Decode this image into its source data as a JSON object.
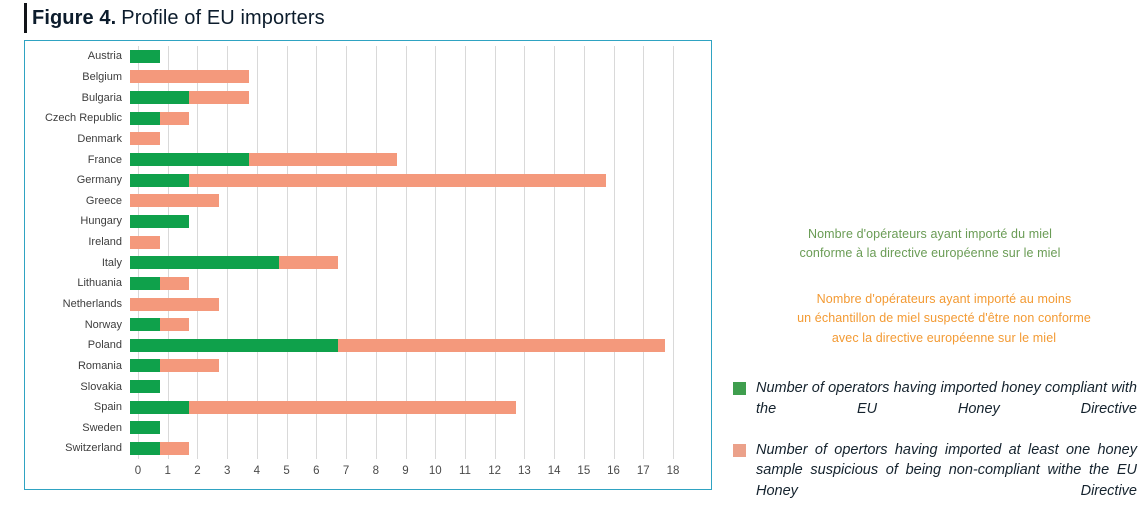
{
  "title": {
    "bold": "Figure 4.",
    "rest": "Profile of EU importers"
  },
  "colors": {
    "bar_green": "#0fa14b",
    "bar_salmon": "#f4997c",
    "frame_border": "#2fa3c2",
    "grid": "#d9d9d9",
    "fr_green_text": "#6a9c55",
    "fr_orange_text": "#f39a33",
    "legend_green": "#3f9e4e",
    "legend_salmon": "#eba18a"
  },
  "chart_data": {
    "type": "bar",
    "orientation": "horizontal",
    "stacked": true,
    "title": "Profile of EU importers",
    "categories": [
      "Austria",
      "Belgium",
      "Bulgaria",
      "Czech Republic",
      "Denmark",
      "France",
      "Germany",
      "Greece",
      "Hungary",
      "Ireland",
      "Italy",
      "Lithuania",
      "Netherlands",
      "Norway",
      "Poland",
      "Romania",
      "Slovakia",
      "Spain",
      "Sweden",
      "Switzerland"
    ],
    "series": [
      {
        "name": "Number of operators having imported honey compliant with the EU Honey Directive",
        "color_key": "bar_green",
        "values": [
          1,
          0,
          2,
          1,
          0,
          4,
          2,
          0,
          2,
          0,
          5,
          1,
          0,
          1,
          7,
          1,
          1,
          2,
          1,
          1
        ]
      },
      {
        "name": "Number of opertors having imported at least one honey sample suspicious of being non-compliant withe the EU Honey Directive",
        "color_key": "bar_salmon",
        "values": [
          0,
          4,
          2,
          1,
          1,
          5,
          14,
          3,
          0,
          1,
          2,
          1,
          3,
          1,
          11,
          2,
          0,
          11,
          0,
          1
        ]
      }
    ],
    "xlim": [
      0,
      18
    ],
    "x_ticks": [
      0,
      1,
      2,
      3,
      4,
      5,
      6,
      7,
      8,
      9,
      10,
      11,
      12,
      13,
      14,
      15,
      16,
      17,
      18
    ],
    "grid": true,
    "legend_position": "right"
  },
  "annotations": {
    "fr_green": "Nombre d'opérateurs ayant importé du miel\nconforme à la directive européenne sur le miel",
    "fr_orange": "Nombre d'opérateurs ayant importé au moins\nun échantillon de miel suspecté d'être non conforme\navec la directive européenne sur le miel"
  },
  "legend": {
    "items": [
      {
        "label": "Number of operators having imported honey compliant with the EU Honey Directive",
        "color_key": "legend_green"
      },
      {
        "label": "Number of opertors having imported at least one honey sample suspicious of being non-compliant withe the EU Honey Directive",
        "color_key": "legend_salmon"
      }
    ]
  }
}
